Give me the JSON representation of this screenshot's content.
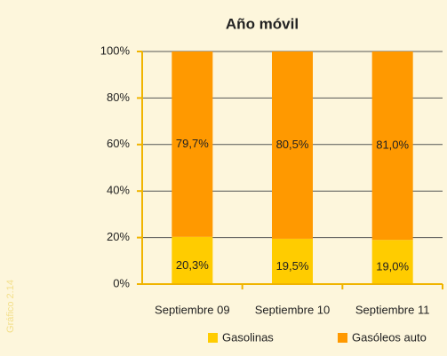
{
  "figure_label": "Gráfico 2.14",
  "chart_data": {
    "type": "stacked_bar",
    "title": "Año móvil",
    "categories": [
      "Septiembre 09",
      "Septiembre 10",
      "Septiembre 11"
    ],
    "series": [
      {
        "name": "Gasolinas",
        "color": "#ffcc00",
        "values": [
          20.3,
          19.5,
          19.0
        ],
        "value_labels": [
          "20,3%",
          "19,5%",
          "19,0%"
        ]
      },
      {
        "name": "Gasóleos auto",
        "color": "#ff9900",
        "values": [
          79.7,
          80.5,
          81.0
        ],
        "value_labels": [
          "79,7%",
          "80,5%",
          "81,0%"
        ]
      }
    ],
    "ylim": [
      0,
      100
    ],
    "yticks": [
      {
        "value": 0,
        "label": "0%"
      },
      {
        "value": 20,
        "label": "20%"
      },
      {
        "value": 40,
        "label": "40%"
      },
      {
        "value": 60,
        "label": "60%"
      },
      {
        "value": 80,
        "label": "80%"
      },
      {
        "value": 100,
        "label": "100%"
      }
    ],
    "grid": true,
    "legend": "bottom"
  }
}
